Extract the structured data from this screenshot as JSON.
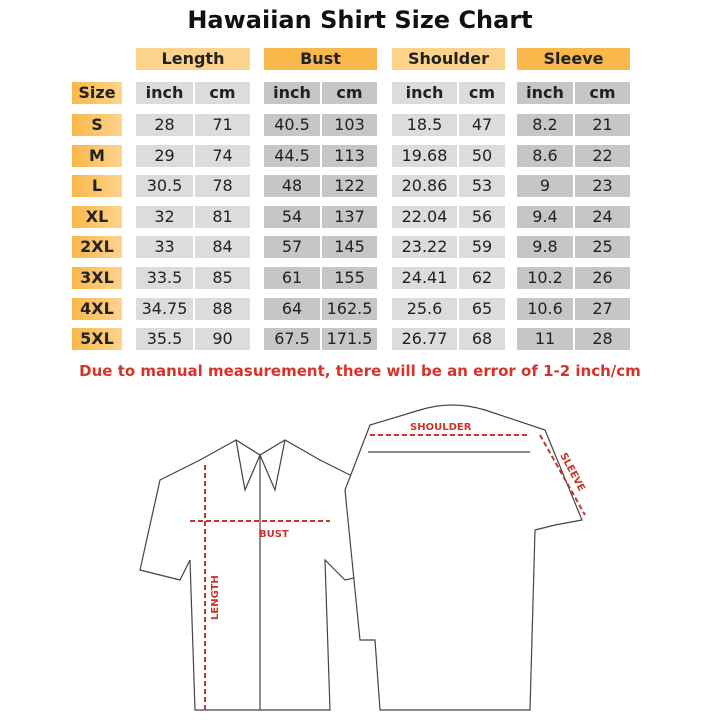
{
  "title": "Hawaiian Shirt Size Chart",
  "groups": [
    "Length",
    "Bust",
    "Shoulder",
    "Sleeve"
  ],
  "size_header": "Size",
  "units": [
    "inch",
    "cm"
  ],
  "rows": [
    [
      "S",
      "28",
      "71",
      "40.5",
      "103",
      "18.5",
      "47",
      "8.2",
      "21"
    ],
    [
      "M",
      "29",
      "74",
      "44.5",
      "113",
      "19.68",
      "50",
      "8.6",
      "22"
    ],
    [
      "L",
      "30.5",
      "78",
      "48",
      "122",
      "20.86",
      "53",
      "9",
      "23"
    ],
    [
      "XL",
      "32",
      "81",
      "54",
      "137",
      "22.04",
      "56",
      "9.4",
      "24"
    ],
    [
      "2XL",
      "33",
      "84",
      "57",
      "145",
      "23.22",
      "59",
      "9.8",
      "25"
    ],
    [
      "3XL",
      "33.5",
      "85",
      "61",
      "155",
      "24.41",
      "62",
      "10.2",
      "26"
    ],
    [
      "4XL",
      "34.75",
      "88",
      "64",
      "162.5",
      "25.6",
      "65",
      "10.6",
      "27"
    ],
    [
      "5XL",
      "35.5",
      "90",
      "67.5",
      "171.5",
      "26.77",
      "68",
      "11",
      "28"
    ]
  ],
  "note": "Due to manual measurement, there will be an error of 1-2 inch/cm",
  "diagram": {
    "bust": "BUST",
    "length": "LENGTH",
    "shoulder": "SHOULDER",
    "sleeve": "SLEEVE"
  },
  "colors": {
    "header_light": "#fdd38c",
    "header_dark": "#f9b84b",
    "cell_light": "#dcdcdc",
    "cell_dark": "#c6c6c6",
    "accent_red": "#d8332a"
  }
}
